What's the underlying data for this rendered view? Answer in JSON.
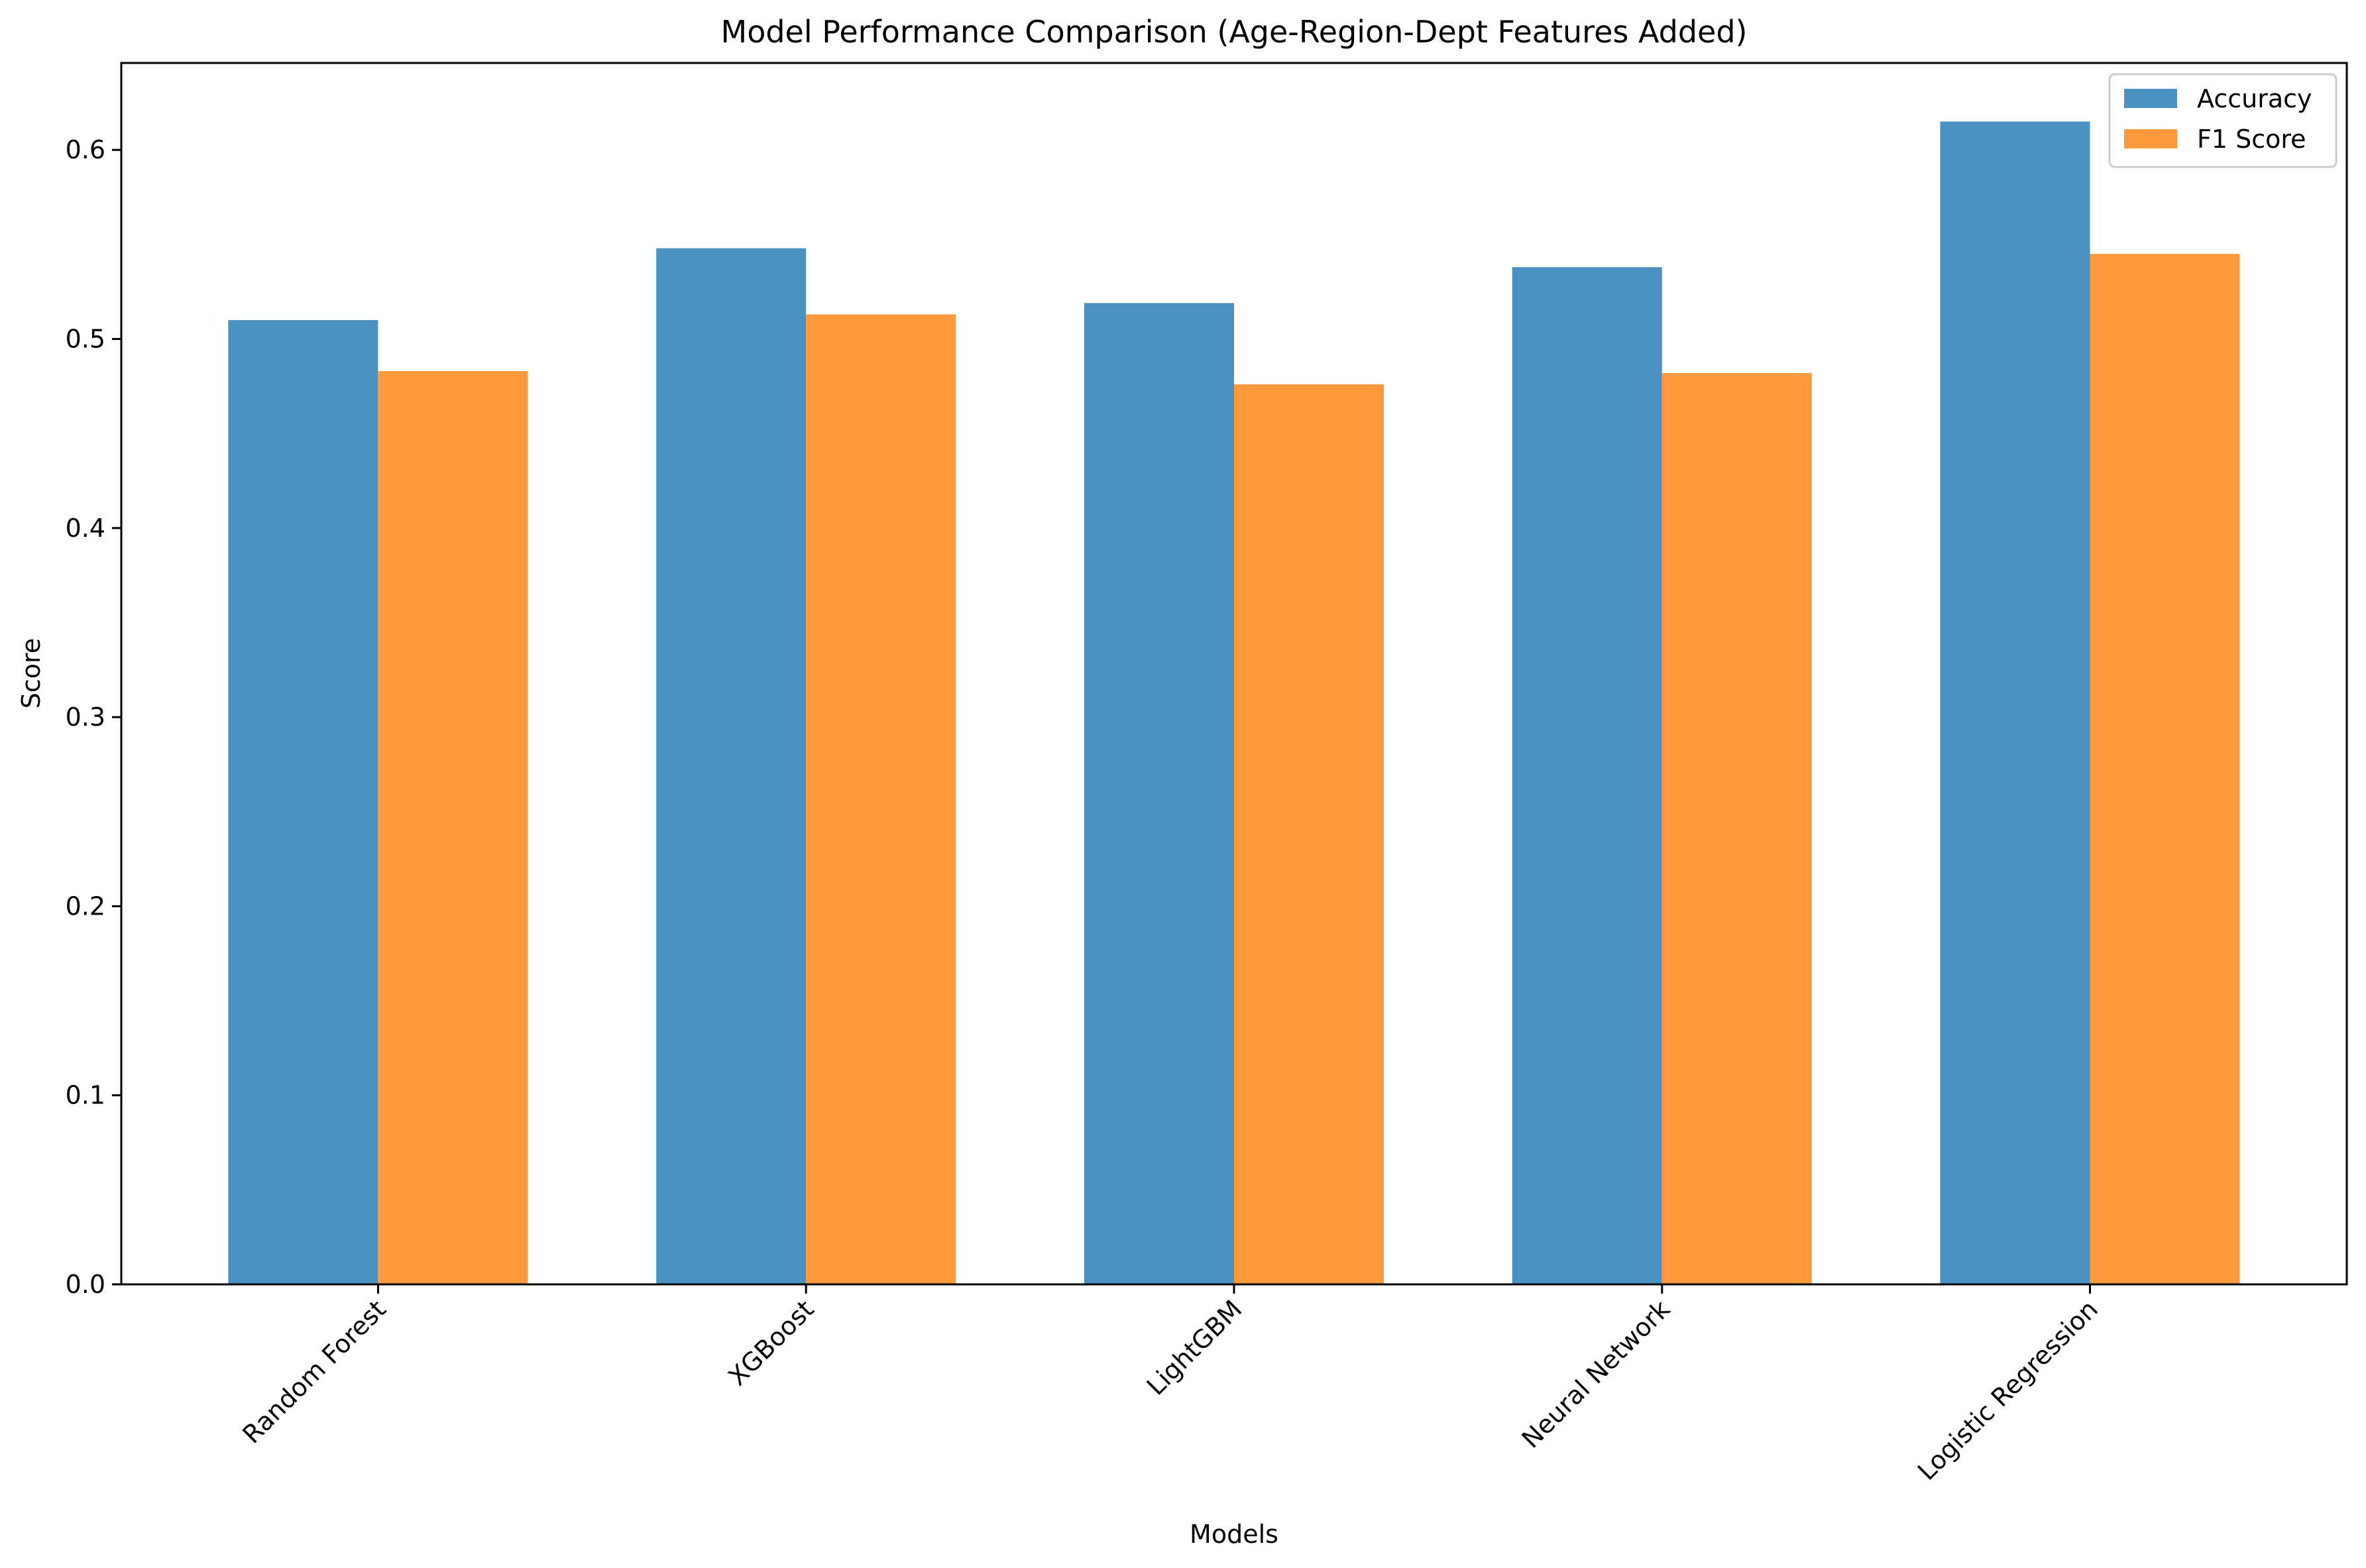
{
  "chart_data": {
    "type": "bar",
    "title": "Model Performance Comparison (Age-Region-Dept Features Added)",
    "xlabel": "Models",
    "ylabel": "Score",
    "categories": [
      "Random Forest",
      "XGBoost",
      "LightGBM",
      "Neural Network",
      "Logistic Regression"
    ],
    "series": [
      {
        "name": "Accuracy",
        "values": [
          0.51,
          0.548,
          0.519,
          0.538,
          0.615
        ],
        "color": "#4a91c2"
      },
      {
        "name": "F1 Score",
        "values": [
          0.483,
          0.513,
          0.476,
          0.482,
          0.545
        ],
        "color": "#ff993e"
      }
    ],
    "yticks": [
      "0.0",
      "0.1",
      "0.2",
      "0.3",
      "0.4",
      "0.5",
      "0.6"
    ],
    "ylim": [
      0,
      0.646
    ],
    "grid": false,
    "legend": "top-right",
    "xtick_rotation": 45
  }
}
